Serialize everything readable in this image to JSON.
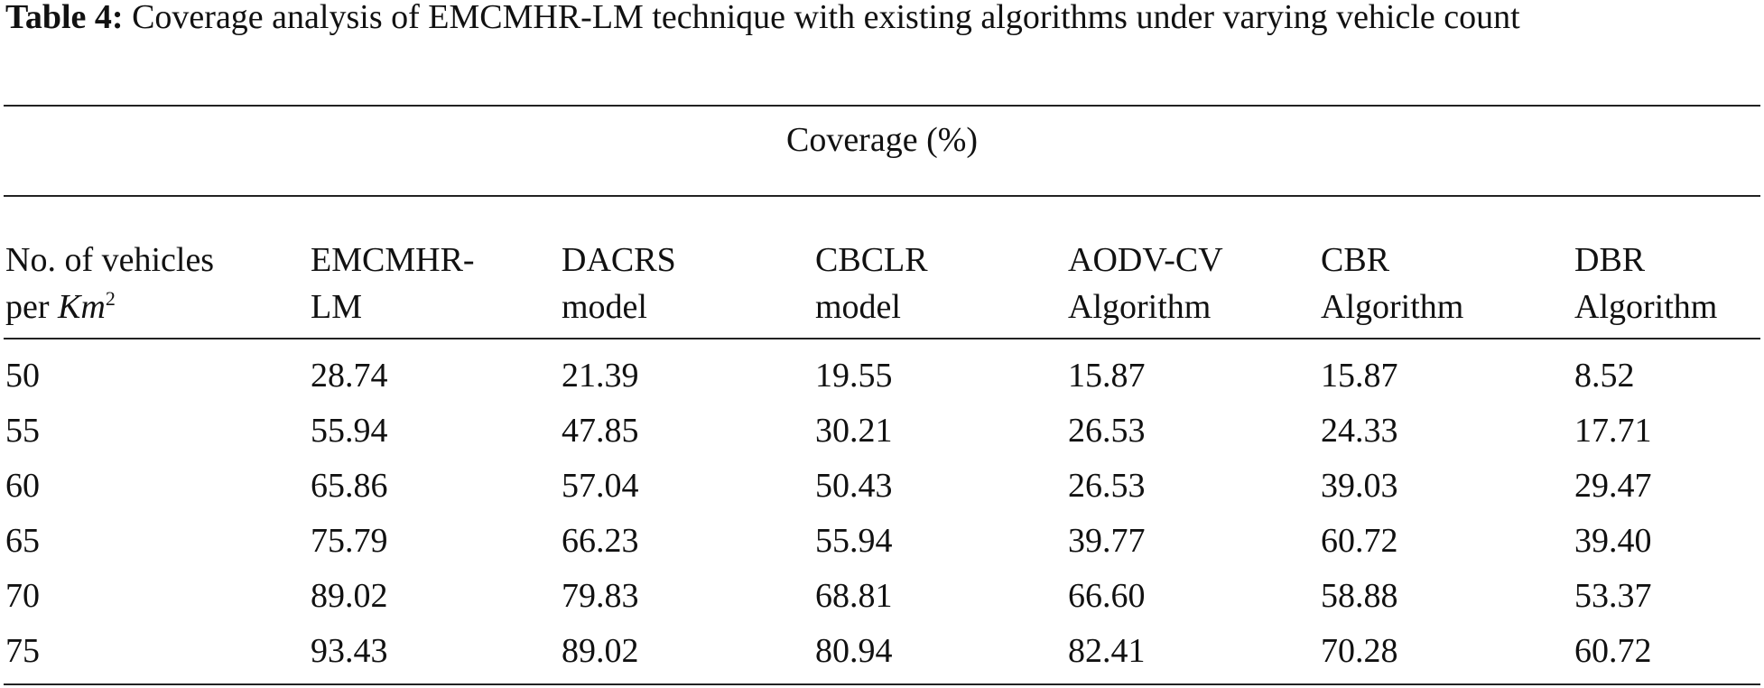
{
  "caption": {
    "label": "Table 4:",
    "text": " Coverage analysis of EMCMHR-LM technique with existing algorithms under varying vehicle count"
  },
  "table": {
    "group_header": "Coverage (%)",
    "first_column_header": {
      "line1": "No. of vehicles",
      "line2_prefix": "per ",
      "line2_unit": "Km",
      "line2_exponent": "2"
    },
    "columns": [
      {
        "line1": "EMCMHR-",
        "line2": "LM"
      },
      {
        "line1": "DACRS",
        "line2": "model"
      },
      {
        "line1": "CBCLR",
        "line2": "model"
      },
      {
        "line1": "AODV-CV",
        "line2": "Algorithm"
      },
      {
        "line1": "CBR",
        "line2": "Algorithm"
      },
      {
        "line1": "DBR",
        "line2": "Algorithm"
      }
    ],
    "rows": [
      [
        "50",
        "28.74",
        "21.39",
        "19.55",
        "15.87",
        "15.87",
        "8.52"
      ],
      [
        "55",
        "55.94",
        "47.85",
        "30.21",
        "26.53",
        "24.33",
        "17.71"
      ],
      [
        "60",
        "65.86",
        "57.04",
        "50.43",
        "26.53",
        "39.03",
        "29.47"
      ],
      [
        "65",
        "75.79",
        "66.23",
        "55.94",
        "39.77",
        "60.72",
        "39.40"
      ],
      [
        "70",
        "89.02",
        "79.83",
        "68.81",
        "66.60",
        "58.88",
        "53.37"
      ],
      [
        "75",
        "93.43",
        "89.02",
        "80.94",
        "82.41",
        "70.28",
        "60.72"
      ]
    ]
  }
}
